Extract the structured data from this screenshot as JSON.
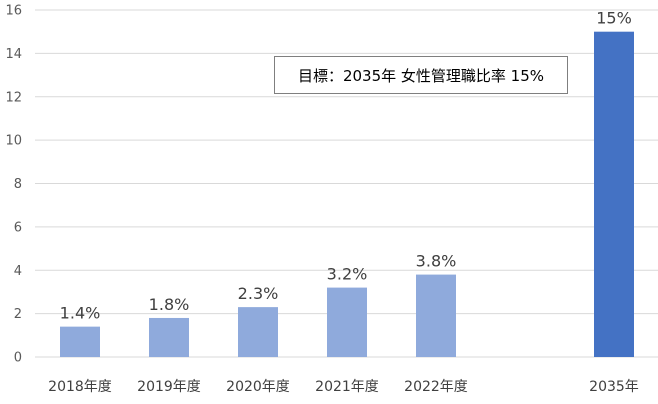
{
  "chart_data": {
    "type": "bar",
    "categories": [
      "2018年度",
      "2019年度",
      "2020年度",
      "2021年度",
      "2022年度",
      "",
      "2035年"
    ],
    "values": [
      1.4,
      1.8,
      2.3,
      3.2,
      3.8,
      null,
      15
    ],
    "data_labels": [
      "1.4%",
      "1.8%",
      "2.3%",
      "3.2%",
      "3.8%",
      "",
      "15%"
    ],
    "bar_colors": [
      "#8faadc",
      "#8faadc",
      "#8faadc",
      "#8faadc",
      "#8faadc",
      "",
      "#4472c4"
    ],
    "ylim": [
      0,
      16
    ],
    "yticks": [
      0,
      2,
      4,
      6,
      8,
      10,
      12,
      14,
      16
    ],
    "grid": true,
    "annotation": "目標：2035年 女性管理職比率 15%",
    "title": "",
    "xlabel": "",
    "ylabel": ""
  }
}
